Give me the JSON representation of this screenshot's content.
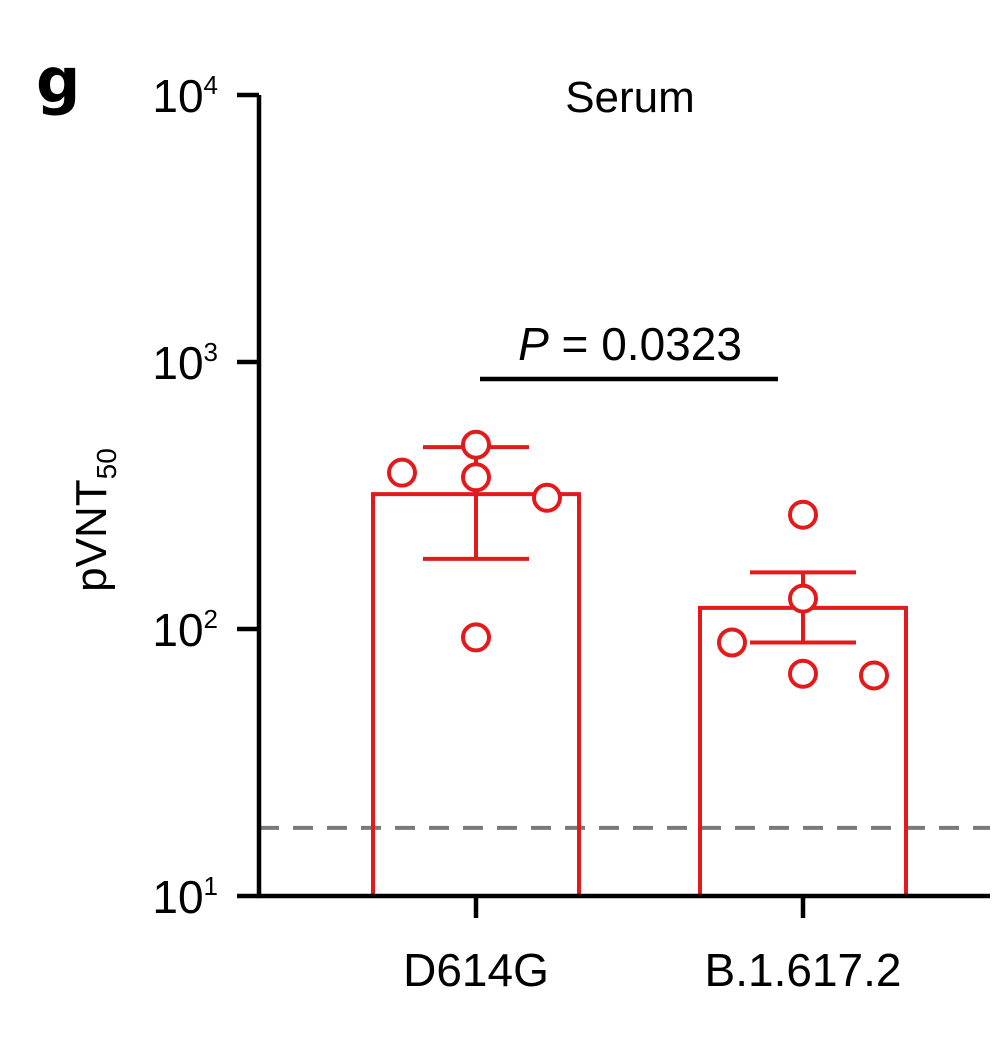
{
  "panel_label": "g",
  "chart_data": {
    "type": "bar",
    "title": "Serum",
    "ylabel": "pVNT",
    "ylabel_subscript": "50",
    "yscale": "log",
    "ylim": [
      10,
      10000
    ],
    "yticks": [
      {
        "value": 10,
        "base": "10",
        "exp": "1"
      },
      {
        "value": 100,
        "base": "10",
        "exp": "2"
      },
      {
        "value": 1000,
        "base": "10",
        "exp": "3"
      },
      {
        "value": 10000,
        "base": "10",
        "exp": "4"
      }
    ],
    "categories": [
      "D614G",
      "B.1.617.2"
    ],
    "values": [
      320,
      120
    ],
    "error_bars": [
      {
        "upper": 480,
        "lower": 183
      },
      {
        "upper": 163,
        "lower": 89
      }
    ],
    "points": [
      [
        385,
        490,
        370,
        310,
        93
      ],
      [
        268,
        130,
        89,
        68,
        67
      ]
    ],
    "detection_limit": 18,
    "annotation": {
      "italic": "P",
      "text": " = 0.0323"
    },
    "colors": {
      "series": "#e31a1c",
      "axis": "#000000",
      "limit_line": "#7a7a7a"
    },
    "grid": false
  }
}
